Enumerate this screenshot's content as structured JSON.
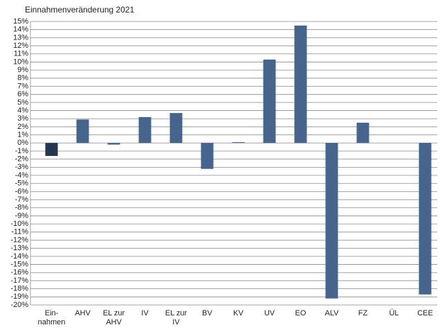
{
  "chart_data": {
    "type": "bar",
    "title": "Einnahmenveränderung 2021",
    "categories": [
      "Ein-\nnahmen",
      "AHV",
      "EL zur\nAHV",
      "IV",
      "EL zur\nIV",
      "BV",
      "KV",
      "UV",
      "EO",
      "ALV",
      "FZ",
      "ÜL",
      "CEE"
    ],
    "values": [
      -1.6,
      2.9,
      -0.2,
      3.2,
      3.7,
      -3.2,
      0.1,
      10.3,
      14.5,
      -19.2,
      2.5,
      0,
      -18.7
    ],
    "colors": [
      "#243752",
      "#46648c",
      "#46648c",
      "#46648c",
      "#46648c",
      "#46648c",
      "#46648c",
      "#46648c",
      "#46648c",
      "#46648c",
      "#46648c",
      "#46648c",
      "#46648c"
    ],
    "ylim": [
      -20,
      15
    ],
    "yticks": [
      {
        "value": -20,
        "label": "-20%"
      },
      {
        "value": -19,
        "label": "-19%"
      },
      {
        "value": -18,
        "label": "-18%"
      },
      {
        "value": -17,
        "label": "-17%"
      },
      {
        "value": -16,
        "label": "-16%"
      },
      {
        "value": -15,
        "label": "-15%"
      },
      {
        "value": -14,
        "label": "-14%"
      },
      {
        "value": -13,
        "label": "-13%"
      },
      {
        "value": -12,
        "label": "-12%"
      },
      {
        "value": -11,
        "label": "-11%"
      },
      {
        "value": -10,
        "label": "-10%"
      },
      {
        "value": -9,
        "label": "-9%"
      },
      {
        "value": -8,
        "label": "-8%"
      },
      {
        "value": -7,
        "label": "-7%"
      },
      {
        "value": -6,
        "label": "-6%"
      },
      {
        "value": -5,
        "label": "-5%"
      },
      {
        "value": -4,
        "label": "-4%"
      },
      {
        "value": -3,
        "label": "-3%"
      },
      {
        "value": -2,
        "label": "-2%"
      },
      {
        "value": -1,
        "label": "-1%"
      },
      {
        "value": 0,
        "label": "0%"
      },
      {
        "value": 1,
        "label": "1%"
      },
      {
        "value": 2,
        "label": "2%"
      },
      {
        "value": 3,
        "label": "3%"
      },
      {
        "value": 4,
        "label": "4%"
      },
      {
        "value": 5,
        "label": "5%"
      },
      {
        "value": 6,
        "label": "6%"
      },
      {
        "value": 7,
        "label": "7%"
      },
      {
        "value": 8,
        "label": "8%"
      },
      {
        "value": 9,
        "label": "9%"
      },
      {
        "value": 10,
        "label": "10%"
      },
      {
        "value": 11,
        "label": "11%"
      },
      {
        "value": 12,
        "label": "12%"
      },
      {
        "value": 13,
        "label": "13%"
      },
      {
        "value": 14,
        "label": "14%"
      },
      {
        "value": 15,
        "label": "15%"
      }
    ],
    "grid": true
  }
}
